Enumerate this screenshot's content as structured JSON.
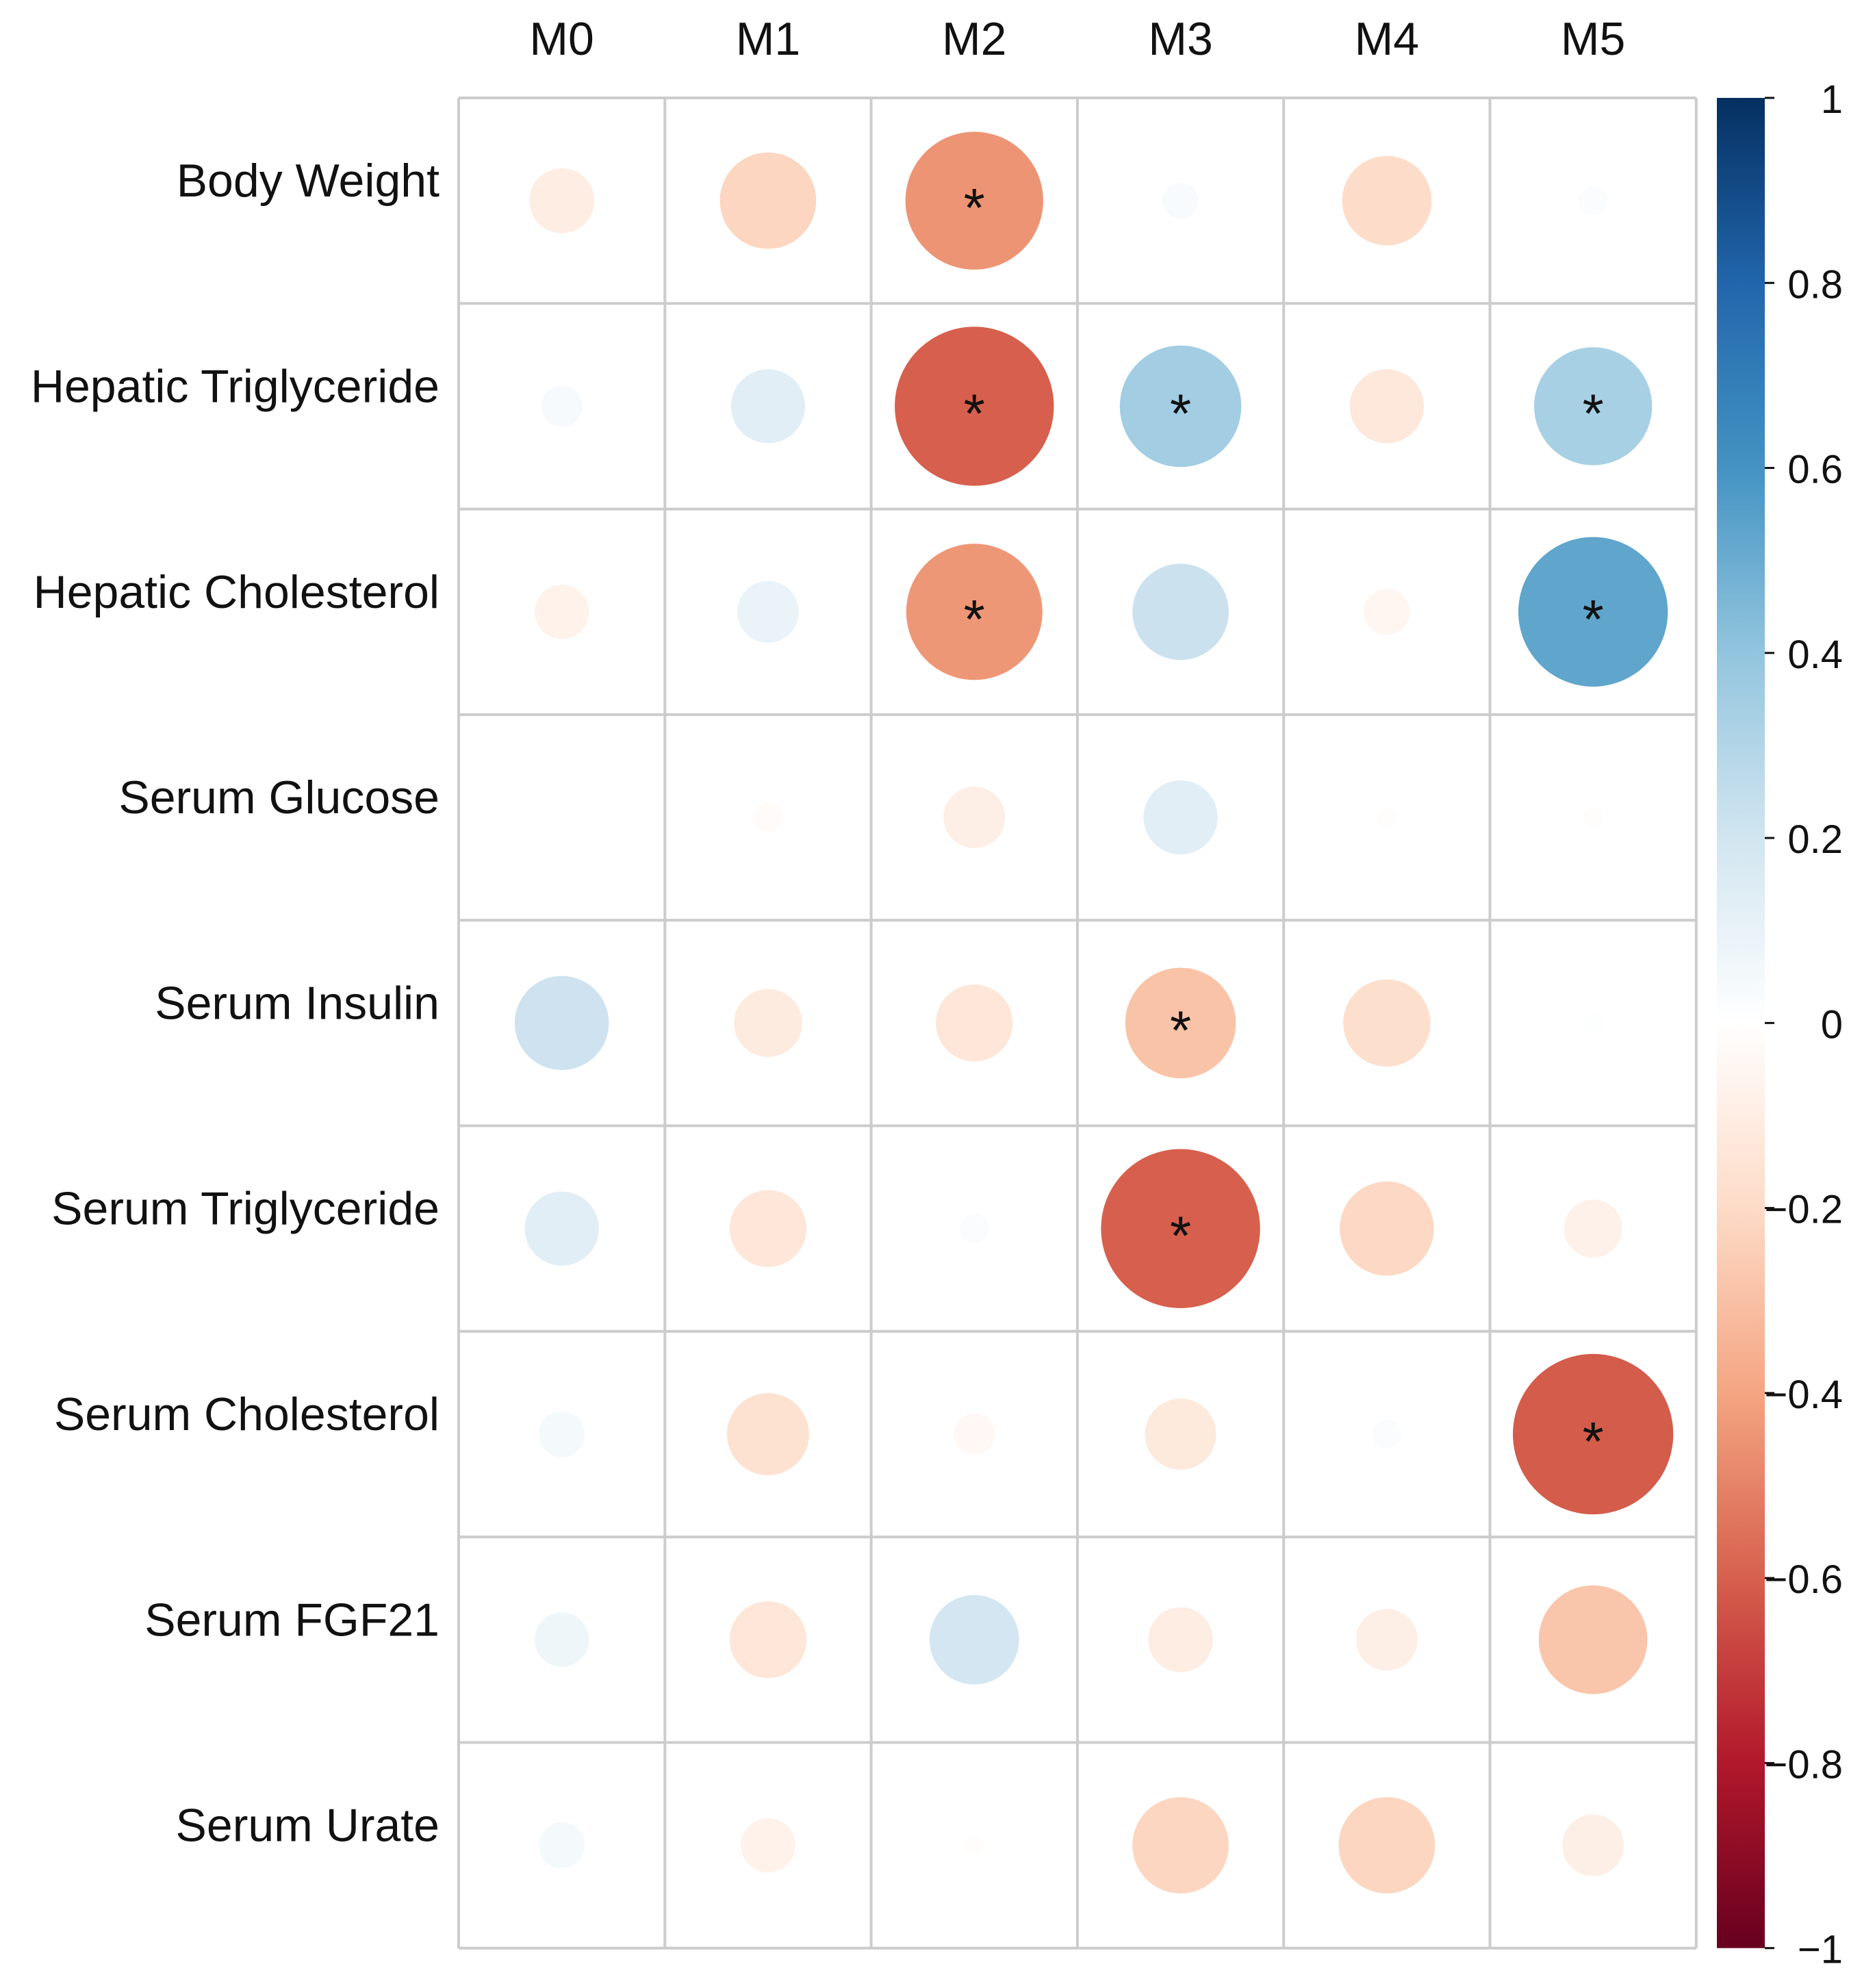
{
  "chart_data": {
    "type": "heatmap",
    "style": "circle-correlation",
    "columns": [
      "M0",
      "M1",
      "M2",
      "M3",
      "M4",
      "M5"
    ],
    "rows": [
      "Body Weight",
      "Hepatic Triglyceride",
      "Hepatic Cholesterol",
      "Serum Glucose",
      "Serum Insulin",
      "Serum Triglyceride",
      "Serum Cholesterol",
      "Serum FGF21",
      "Serum Urate"
    ],
    "values": [
      [
        -0.1,
        -0.22,
        -0.45,
        0.03,
        -0.19,
        0.02
      ],
      [
        0.04,
        0.13,
        -0.6,
        0.35,
        -0.13,
        0.33
      ],
      [
        -0.07,
        0.09,
        -0.44,
        0.22,
        -0.05,
        0.53
      ],
      [
        0.0,
        -0.02,
        -0.09,
        0.13,
        -0.01,
        -0.01
      ],
      [
        0.21,
        -0.11,
        -0.14,
        -0.29,
        -0.18,
        0.01
      ],
      [
        0.13,
        -0.14,
        0.02,
        -0.6,
        -0.21,
        -0.08
      ],
      [
        0.05,
        -0.16,
        -0.04,
        -0.12,
        0.02,
        -0.61
      ],
      [
        0.07,
        -0.14,
        0.19,
        -0.1,
        -0.09,
        -0.28
      ],
      [
        0.05,
        -0.07,
        -0.01,
        -0.22,
        -0.22,
        -0.09
      ]
    ],
    "significant": [
      [
        false,
        false,
        true,
        false,
        false,
        false
      ],
      [
        false,
        false,
        true,
        true,
        false,
        true
      ],
      [
        false,
        false,
        true,
        false,
        false,
        true
      ],
      [
        false,
        false,
        false,
        false,
        false,
        false
      ],
      [
        false,
        false,
        false,
        true,
        false,
        false
      ],
      [
        false,
        false,
        false,
        true,
        false,
        false
      ],
      [
        false,
        false,
        false,
        false,
        false,
        true
      ],
      [
        false,
        false,
        false,
        false,
        false,
        false
      ],
      [
        false,
        false,
        false,
        false,
        false,
        false
      ]
    ],
    "significance_marker": "*",
    "colorbar": {
      "min": -1,
      "max": 1,
      "ticks": [
        "1",
        "0.8",
        "0.6",
        "0.4",
        "0.2",
        "0",
        "−0.2",
        "−0.4",
        "−0.6",
        "−0.8",
        "−1"
      ],
      "tick_values": [
        1,
        0.8,
        0.6,
        0.4,
        0.2,
        0,
        -0.2,
        -0.4,
        -0.6,
        -0.8,
        -1
      ],
      "placement": "right",
      "colors": [
        "#67001F",
        "#B2182B",
        "#D6604D",
        "#F4A582",
        "#FDDBC7",
        "#FFFFFF",
        "#D1E5F0",
        "#92C5DE",
        "#4393C3",
        "#2166AC",
        "#053061"
      ]
    },
    "grid": true,
    "title": "",
    "xlabel": "",
    "ylabel": ""
  }
}
